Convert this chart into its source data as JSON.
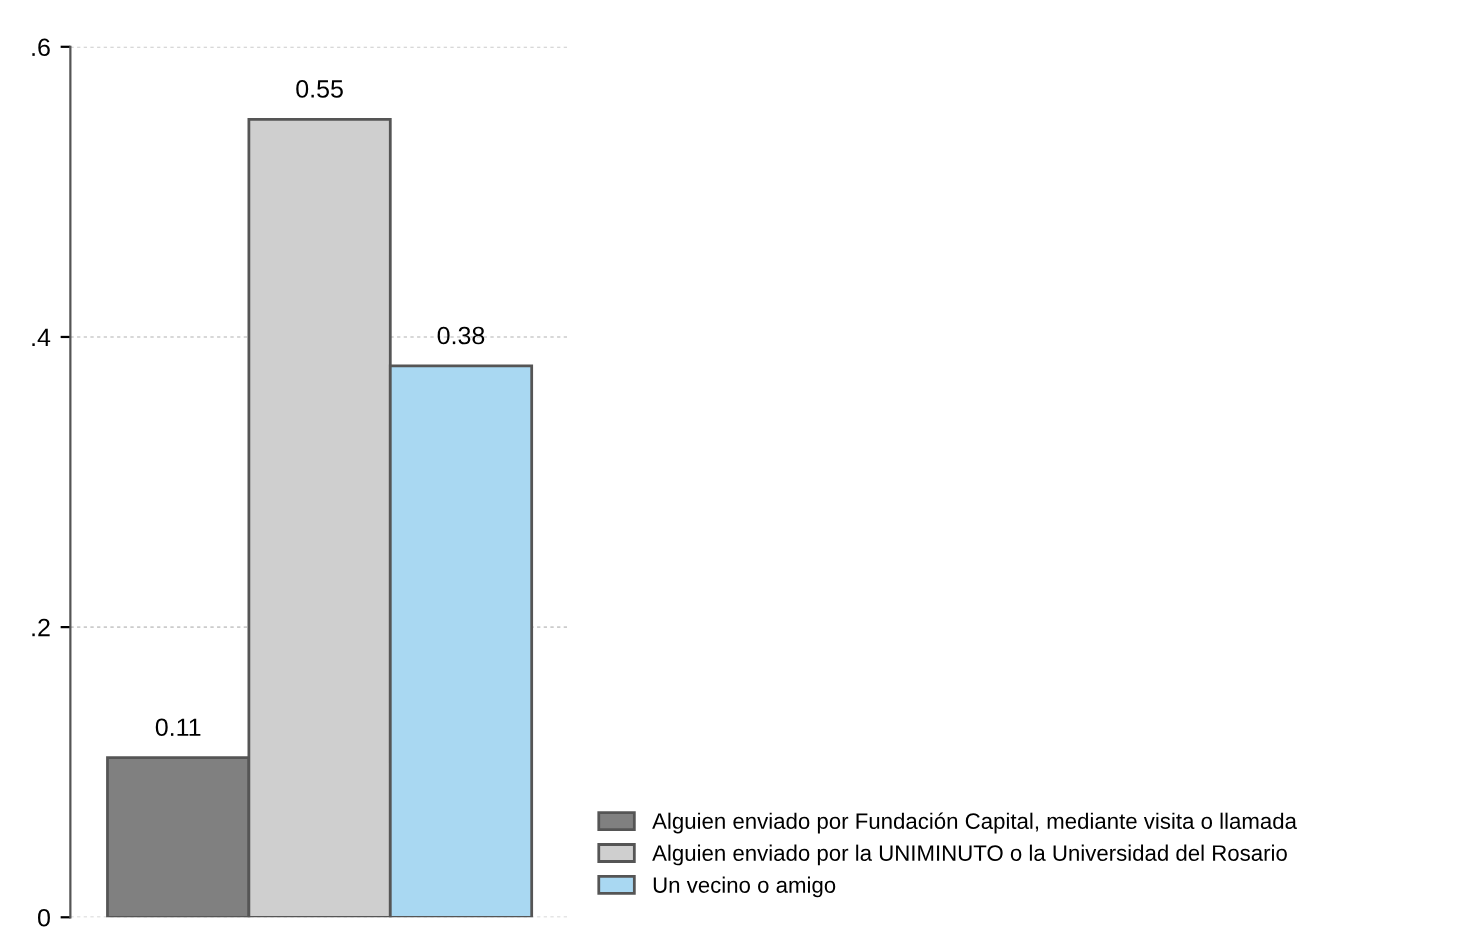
{
  "chart_data": {
    "type": "bar",
    "categories": [
      null
    ],
    "series": [
      {
        "name": "Alguien enviado por Fundación Capital, mediante visita o llamada",
        "color": "#808080",
        "values": [
          0.11
        ]
      },
      {
        "name": "Alguien enviado por la UNIMINUTO o la Universidad del Rosario",
        "color": "#cfcfcf",
        "values": [
          0.55
        ]
      },
      {
        "name": "Un vecino o amigo",
        "color": "#a9d8f2",
        "values": [
          0.38
        ]
      }
    ],
    "ylim": [
      0,
      0.6
    ],
    "yticks": [
      {
        "value": 0,
        "label": "0"
      },
      {
        "value": 0.2,
        "label": ".2"
      },
      {
        "value": 0.4,
        "label": ".4"
      },
      {
        "value": 0.6,
        "label": ".6"
      }
    ],
    "grid": "y",
    "legend": "bottom right",
    "data_labels": true
  }
}
